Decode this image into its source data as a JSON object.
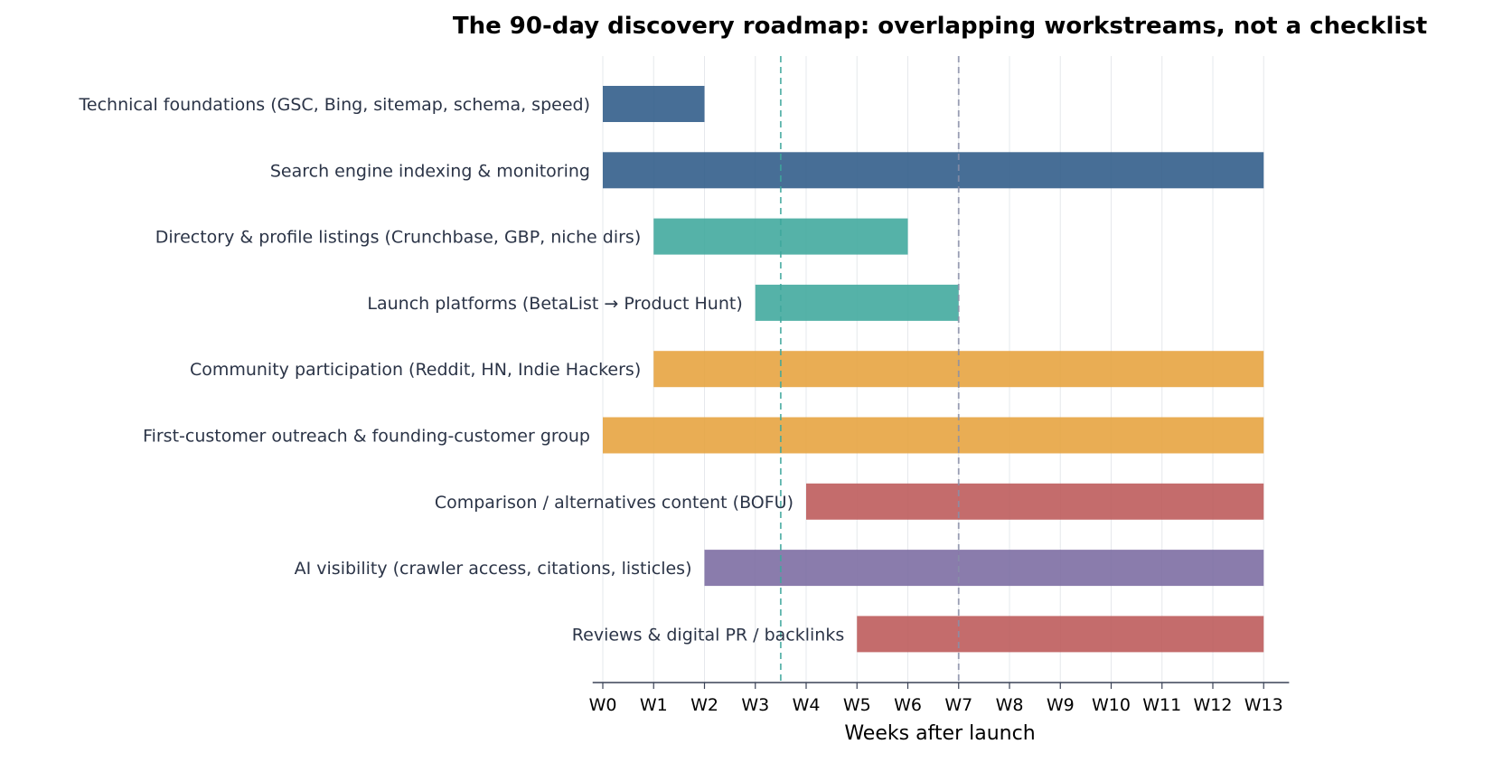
{
  "chart_data": {
    "type": "bar",
    "orientation": "horizontal-gantt",
    "title": "The 90-day discovery roadmap: overlapping workstreams, not a checklist",
    "xlabel": "Weeks after launch",
    "ylabel": "",
    "xlim": [
      -0.2,
      13.5
    ],
    "x_ticks": [
      "W0",
      "W1",
      "W2",
      "W3",
      "W4",
      "W5",
      "W6",
      "W7",
      "W8",
      "W9",
      "W10",
      "W11",
      "W12",
      "W13"
    ],
    "grid": "vertical",
    "tasks": [
      {
        "label": "Technical foundations (GSC, Bing, sitemap, schema, speed)",
        "start": 0,
        "end": 2,
        "color": "#2e5a87"
      },
      {
        "label": "Search engine indexing & monitoring",
        "start": 0,
        "end": 13,
        "color": "#2e5a87"
      },
      {
        "label": "Directory & profile listings (Crunchbase, GBP, niche dirs)",
        "start": 1,
        "end": 6,
        "color": "#3ea79c"
      },
      {
        "label": "Launch platforms (BetaList → Product Hunt)",
        "start": 3,
        "end": 7,
        "color": "#3ea79c"
      },
      {
        "label": "Community participation (Reddit, HN, Indie Hackers)",
        "start": 1,
        "end": 13,
        "color": "#e6a23c"
      },
      {
        "label": "First-customer outreach & founding-customer group",
        "start": 0,
        "end": 13,
        "color": "#e6a23c"
      },
      {
        "label": "Comparison / alternatives content (BOFU)",
        "start": 4,
        "end": 13,
        "color": "#bc5858"
      },
      {
        "label": "AI visibility (crawler access, citations, listicles)",
        "start": 2,
        "end": 13,
        "color": "#7a6aa0"
      },
      {
        "label": "Reviews & digital PR / backlinks",
        "start": 5,
        "end": 13,
        "color": "#bc5858"
      }
    ],
    "markers": [
      {
        "x": 3.5,
        "color": "#3ea79c",
        "style": "dashed"
      },
      {
        "x": 7,
        "color": "#8a8fa8",
        "style": "dashed"
      }
    ]
  }
}
